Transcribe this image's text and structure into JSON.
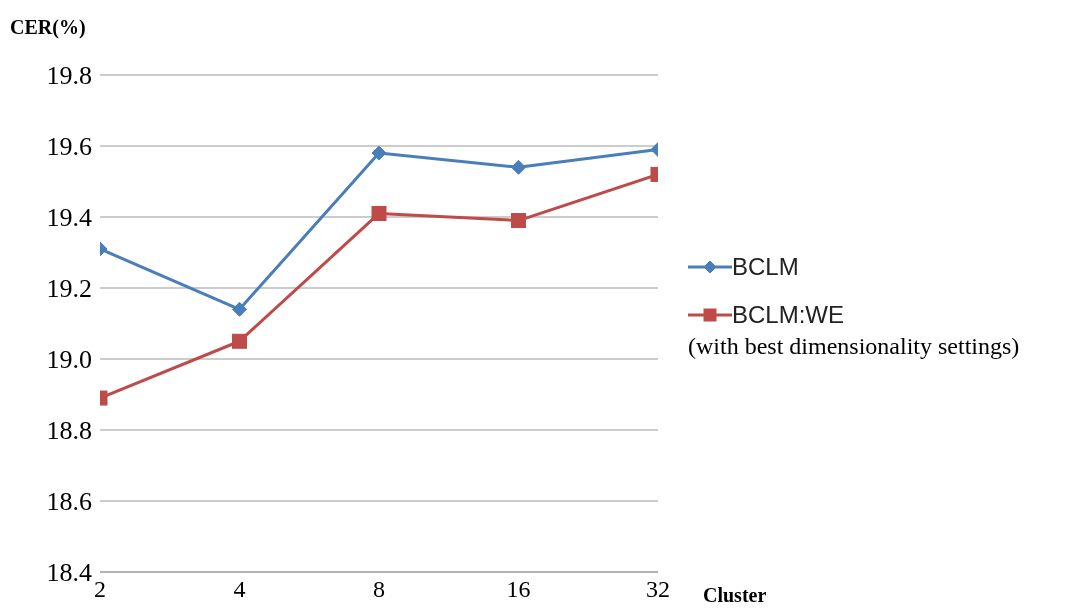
{
  "chart_data": {
    "type": "line",
    "ylabel": "CER(%)",
    "xlabel": "Cluster",
    "categories": [
      "2",
      "4",
      "8",
      "16",
      "32"
    ],
    "series": [
      {
        "name": "BCLM",
        "color": "#4a7ebb",
        "marker": "diamond",
        "values": [
          19.31,
          19.14,
          19.58,
          19.54,
          19.59
        ]
      },
      {
        "name": "BCLM:WE",
        "color": "#be4b48",
        "marker": "square",
        "values": [
          18.89,
          19.05,
          19.41,
          19.39,
          19.52
        ]
      }
    ],
    "annotations": [
      "(with best dimensionality settings)"
    ],
    "ylim": [
      18.4,
      19.8
    ],
    "yticks": [
      18.4,
      18.6,
      18.8,
      {
        "value": 19.0,
        "label": "19.0"
      },
      19.2,
      19.4,
      19.6,
      19.8
    ],
    "grid": "y",
    "legend": "right",
    "line_style": "solid"
  }
}
